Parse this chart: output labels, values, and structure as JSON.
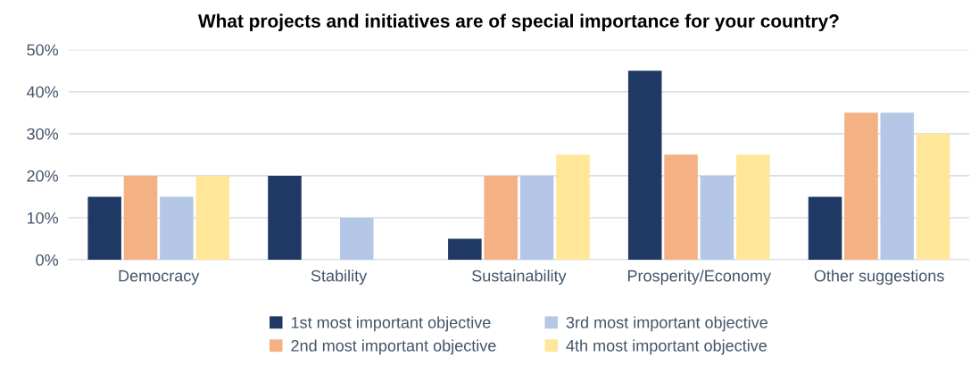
{
  "chart_data": {
    "type": "bar",
    "title": "What projects and initiatives are of special importance for your country?",
    "categories": [
      "Democracy",
      "Stability",
      "Sustainability",
      "Prosperity/Economy",
      "Other suggestions"
    ],
    "series": [
      {
        "name": "1st most important objective",
        "color": "#203864",
        "values": [
          15,
          20,
          5,
          45,
          15
        ]
      },
      {
        "name": "2nd most important objective",
        "color": "#f4b183",
        "values": [
          20,
          0,
          20,
          25,
          35
        ]
      },
      {
        "name": "3rd most important objective",
        "color": "#b4c7e7",
        "values": [
          15,
          10,
          20,
          20,
          35
        ]
      },
      {
        "name": "4th most important objective",
        "color": "#ffe699",
        "values": [
          20,
          0,
          25,
          25,
          30
        ]
      }
    ],
    "ylim": [
      0,
      50
    ],
    "yticks": [
      {
        "value": 0,
        "label": "0%"
      },
      {
        "value": 10,
        "label": "10%"
      },
      {
        "value": 20,
        "label": "20%"
      },
      {
        "value": 30,
        "label": "30%"
      },
      {
        "value": 40,
        "label": "40%"
      },
      {
        "value": 50,
        "label": "50%"
      }
    ],
    "grid": "y",
    "legend": "bottom"
  }
}
